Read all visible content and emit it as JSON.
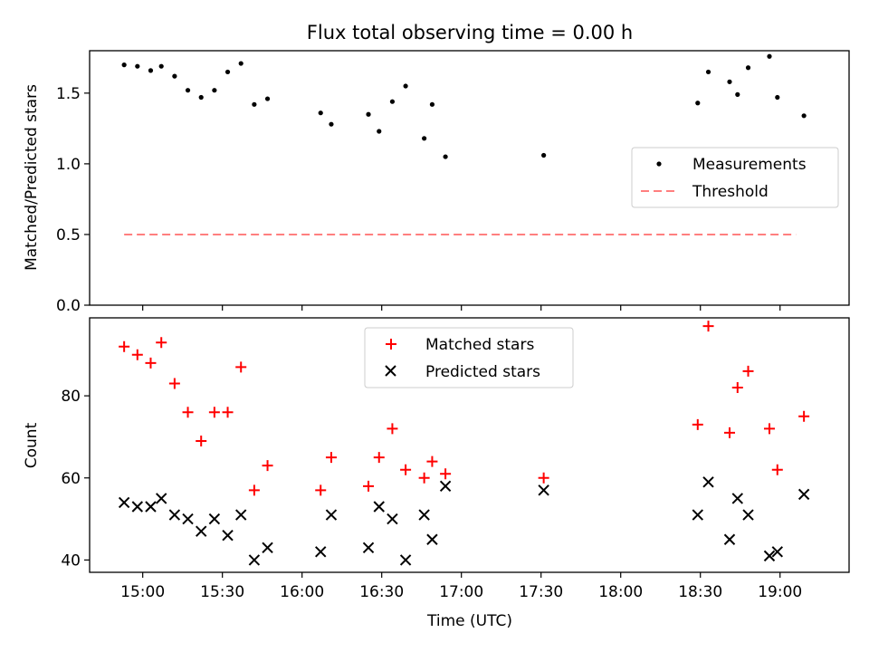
{
  "figure": {
    "title": "Flux total observing time = 0.00 h",
    "xlabel": "Time (UTC)"
  },
  "chart_data": [
    {
      "type": "scatter",
      "ylabel": "Matched/Predicted stars",
      "ylim": [
        0.0,
        1.8
      ],
      "yticks": [
        "0.0",
        "0.5",
        "1.0",
        "1.5"
      ],
      "xlim": [
        "14:40",
        "19:26"
      ],
      "xticks": [
        "15:00",
        "15:30",
        "16:00",
        "16:30",
        "17:00",
        "17:30",
        "18:00",
        "18:30",
        "19:00"
      ],
      "x_tick_labels_shown": false,
      "legend": "center-right",
      "series": [
        {
          "name": "Measurements",
          "marker": "dot",
          "color": "#000000",
          "points": [
            [
              "14:53",
              1.7
            ],
            [
              "14:58",
              1.69
            ],
            [
              "15:03",
              1.66
            ],
            [
              "15:07",
              1.69
            ],
            [
              "15:12",
              1.62
            ],
            [
              "15:17",
              1.52
            ],
            [
              "15:22",
              1.47
            ],
            [
              "15:27",
              1.52
            ],
            [
              "15:32",
              1.65
            ],
            [
              "15:37",
              1.71
            ],
            [
              "15:42",
              1.42
            ],
            [
              "15:47",
              1.46
            ],
            [
              "16:07",
              1.36
            ],
            [
              "16:11",
              1.28
            ],
            [
              "16:25",
              1.35
            ],
            [
              "16:29",
              1.23
            ],
            [
              "16:34",
              1.44
            ],
            [
              "16:39",
              1.55
            ],
            [
              "16:46",
              1.18
            ],
            [
              "16:49",
              1.42
            ],
            [
              "16:54",
              1.05
            ],
            [
              "17:31",
              1.06
            ],
            [
              "18:29",
              1.43
            ],
            [
              "18:33",
              1.65
            ],
            [
              "18:41",
              1.58
            ],
            [
              "18:44",
              1.49
            ],
            [
              "18:48",
              1.68
            ],
            [
              "18:56",
              1.76
            ],
            [
              "18:59",
              1.47
            ],
            [
              "19:09",
              1.34
            ]
          ]
        },
        {
          "name": "Threshold",
          "style": "dashed",
          "color": "#ff7f7f",
          "points": [
            [
              "14:53",
              0.5
            ],
            [
              "19:06",
              0.5
            ]
          ]
        }
      ]
    },
    {
      "type": "scatter",
      "ylabel": "Count",
      "ylim": [
        37,
        99
      ],
      "yticks": [
        "40",
        "60",
        "80"
      ],
      "xlim": [
        "14:40",
        "19:26"
      ],
      "xticks": [
        "15:00",
        "15:30",
        "16:00",
        "16:30",
        "17:00",
        "17:30",
        "18:00",
        "18:30",
        "19:00"
      ],
      "legend": "top-center",
      "series": [
        {
          "name": "Matched stars",
          "marker": "plus",
          "color": "#ff0000",
          "points": [
            [
              "14:53",
              92
            ],
            [
              "14:58",
              90
            ],
            [
              "15:03",
              88
            ],
            [
              "15:07",
              93
            ],
            [
              "15:12",
              83
            ],
            [
              "15:17",
              76
            ],
            [
              "15:22",
              69
            ],
            [
              "15:27",
              76
            ],
            [
              "15:32",
              76
            ],
            [
              "15:37",
              87
            ],
            [
              "15:42",
              57
            ],
            [
              "15:47",
              63
            ],
            [
              "16:07",
              57
            ],
            [
              "16:11",
              65
            ],
            [
              "16:25",
              58
            ],
            [
              "16:29",
              65
            ],
            [
              "16:34",
              72
            ],
            [
              "16:39",
              62
            ],
            [
              "16:46",
              60
            ],
            [
              "16:49",
              64
            ],
            [
              "16:54",
              61
            ],
            [
              "17:31",
              60
            ],
            [
              "18:29",
              73
            ],
            [
              "18:33",
              97
            ],
            [
              "18:41",
              71
            ],
            [
              "18:44",
              82
            ],
            [
              "18:48",
              86
            ],
            [
              "18:56",
              72
            ],
            [
              "18:59",
              62
            ],
            [
              "19:09",
              75
            ]
          ]
        },
        {
          "name": "Predicted stars",
          "marker": "x",
          "color": "#000000",
          "points": [
            [
              "14:53",
              54
            ],
            [
              "14:58",
              53
            ],
            [
              "15:03",
              53
            ],
            [
              "15:07",
              55
            ],
            [
              "15:12",
              51
            ],
            [
              "15:17",
              50
            ],
            [
              "15:22",
              47
            ],
            [
              "15:27",
              50
            ],
            [
              "15:32",
              46
            ],
            [
              "15:37",
              51
            ],
            [
              "15:42",
              40
            ],
            [
              "15:47",
              43
            ],
            [
              "16:07",
              42
            ],
            [
              "16:11",
              51
            ],
            [
              "16:25",
              43
            ],
            [
              "16:29",
              53
            ],
            [
              "16:34",
              50
            ],
            [
              "16:39",
              40
            ],
            [
              "16:46",
              51
            ],
            [
              "16:49",
              45
            ],
            [
              "16:54",
              58
            ],
            [
              "17:31",
              57
            ],
            [
              "18:29",
              51
            ],
            [
              "18:33",
              59
            ],
            [
              "18:41",
              45
            ],
            [
              "18:44",
              55
            ],
            [
              "18:48",
              51
            ],
            [
              "18:56",
              41
            ],
            [
              "18:59",
              42
            ],
            [
              "19:09",
              56
            ]
          ]
        }
      ]
    }
  ]
}
